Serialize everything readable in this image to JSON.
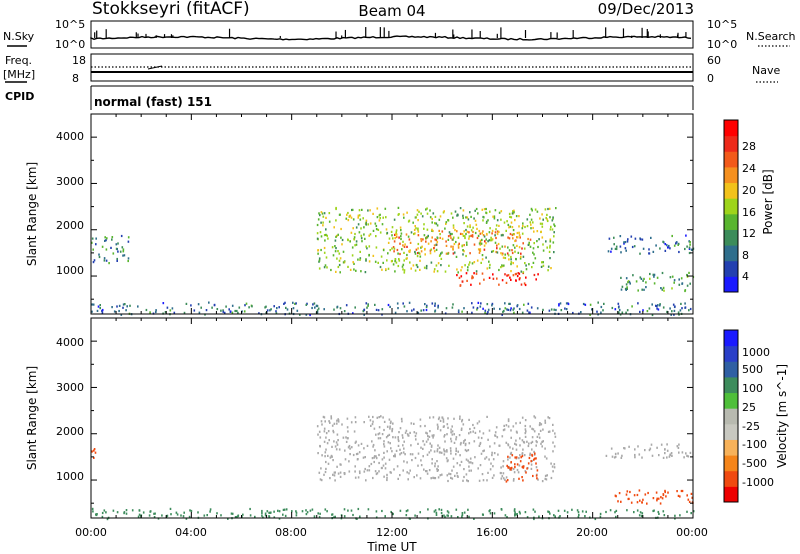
{
  "header": {
    "station": "Stokkseyri (fitACF)",
    "beam": "Beam 04",
    "date": "09/Dec/2013"
  },
  "strips": {
    "nsky_label": "N.Sky",
    "nsky_ticks": [
      "10^5",
      "10^0"
    ],
    "nsearch_label": "N.Search",
    "nsearch_ticks": [
      "10^5",
      "10^0"
    ],
    "freq_label_line1": "Freq.",
    "freq_label_line2": "[MHz]",
    "freq_ticks": [
      "18",
      "8"
    ],
    "nave_label": "Nave",
    "nave_ticks": [
      "60",
      "0"
    ],
    "cpid_label": "CPID",
    "cpid_text": "normal (fast) 151"
  },
  "colors": {
    "power_scale": [
      "#1a1aff",
      "#2340b0",
      "#2f6e8c",
      "#3c8c5a",
      "#59b52f",
      "#9ed41b",
      "#f2c21b",
      "#f5901f",
      "#f25a1a",
      "#ee2a1a",
      "#ff0000"
    ],
    "velocity_scale": [
      "#ee0000",
      "#f04a10",
      "#f5851a",
      "#f7b25a",
      "#c8c8c0",
      "#b8bab0",
      "#4fbf3a",
      "#3d8c5c",
      "#2f5fa3",
      "#2a3fc8",
      "#1a1aff"
    ],
    "ground_scatter": "#a9a9a9"
  },
  "chart_data": [
    {
      "type": "heatmap",
      "panel": "power",
      "xlabel": "",
      "ylabel": "Slant Range [km]",
      "x_range": [
        "00:00",
        "00:00"
      ],
      "ylim": [
        180,
        4500
      ],
      "y_ticks": [
        "1000",
        "2000",
        "3000",
        "4000"
      ],
      "colorbar": {
        "label": "Power [dB]",
        "ticks": [
          "4",
          "8",
          "12",
          "16",
          "20",
          "24",
          "28"
        ],
        "range": [
          0,
          30
        ]
      },
      "regions": [
        {
          "t": [
            14.5,
            18.0
          ],
          "r": [
            800,
            1100
          ],
          "value": 28
        },
        {
          "t": [
            12.0,
            17.5
          ],
          "r": [
            1500,
            2000
          ],
          "value": 22
        },
        {
          "t": [
            9.0,
            18.5
          ],
          "r": [
            1100,
            2500
          ],
          "value": 14
        },
        {
          "t": [
            0.0,
            1.5
          ],
          "r": [
            1300,
            1900
          ],
          "value": 8
        },
        {
          "t": [
            20.5,
            24.0
          ],
          "r": [
            1500,
            1900
          ],
          "value": 6
        },
        {
          "t": [
            21.0,
            24.0
          ],
          "r": [
            700,
            1100
          ],
          "value": 10
        },
        {
          "t": [
            0.0,
            24.0
          ],
          "r": [
            180,
            450
          ],
          "value": 6
        }
      ]
    },
    {
      "type": "heatmap",
      "panel": "velocity",
      "xlabel": "Time UT",
      "ylabel": "Slant Range [km]",
      "x_range": [
        "00:00",
        "00:00"
      ],
      "x_ticks": [
        "00:00",
        "04:00",
        "08:00",
        "12:00",
        "16:00",
        "20:00",
        "00:00"
      ],
      "ylim": [
        180,
        4500
      ],
      "y_ticks": [
        "1000",
        "2000",
        "3000",
        "4000"
      ],
      "colorbar": {
        "label": "Velocity [m s^-1]",
        "ticks": [
          "1000",
          "500",
          "100",
          "25",
          "-25",
          "-100",
          "-500",
          "-1000"
        ]
      },
      "regions": [
        {
          "t": [
            9.0,
            18.5
          ],
          "r": [
            1000,
            2400
          ],
          "value": "ground scatter"
        },
        {
          "t": [
            16.5,
            17.8
          ],
          "r": [
            900,
            1600
          ],
          "value": -500
        },
        {
          "t": [
            20.5,
            24.0
          ],
          "r": [
            500,
            800
          ],
          "value": -500
        },
        {
          "t": [
            0.0,
            0.3
          ],
          "r": [
            1400,
            1800
          ],
          "value": -500
        },
        {
          "t": [
            20.5,
            24.0
          ],
          "r": [
            1500,
            1800
          ],
          "value": "ground scatter"
        },
        {
          "t": [
            0.0,
            24.0
          ],
          "r": [
            180,
            400
          ],
          "value": 100
        }
      ]
    }
  ]
}
